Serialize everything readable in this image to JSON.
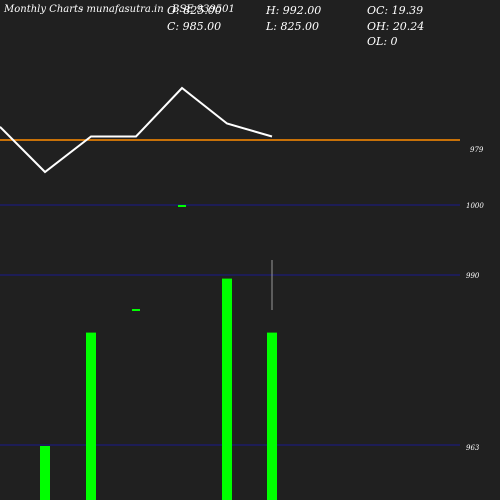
{
  "header": {
    "chart_type_label": "Monthly Charts",
    "site_label": "- munafasutra.in",
    "symbol": "BSE 939501",
    "stats": {
      "open": "O: 825.00",
      "high": "H: 992.00",
      "oc": "OC: 19.39",
      "close": "C: 985.00",
      "low": "L: 825.00",
      "oh": "OH: 20.24",
      "ol": "OL: 0"
    }
  },
  "colors": {
    "background": "#202020",
    "price_line": "#ffffff",
    "reference_line": "#ff8c00",
    "grid": "#1a1a8c",
    "volume_bar": "#00ff00",
    "wick": "#999999"
  },
  "chart_data": {
    "type": "line",
    "price_line": {
      "points": [
        1000,
        930,
        985,
        985,
        1060,
        1005,
        985
      ]
    },
    "reference_line": {
      "value": 979
    },
    "price_ticks": [
      "979",
      "1000",
      "990",
      "963"
    ],
    "bars": [
      {
        "index": 1,
        "value": 20
      },
      {
        "index": 2,
        "value": 62
      },
      {
        "index": 5,
        "value": 82
      },
      {
        "index": 6,
        "value": 62
      }
    ],
    "markers": [
      {
        "index": 3,
        "level": 1
      },
      {
        "index": 4,
        "level": 2
      }
    ]
  }
}
